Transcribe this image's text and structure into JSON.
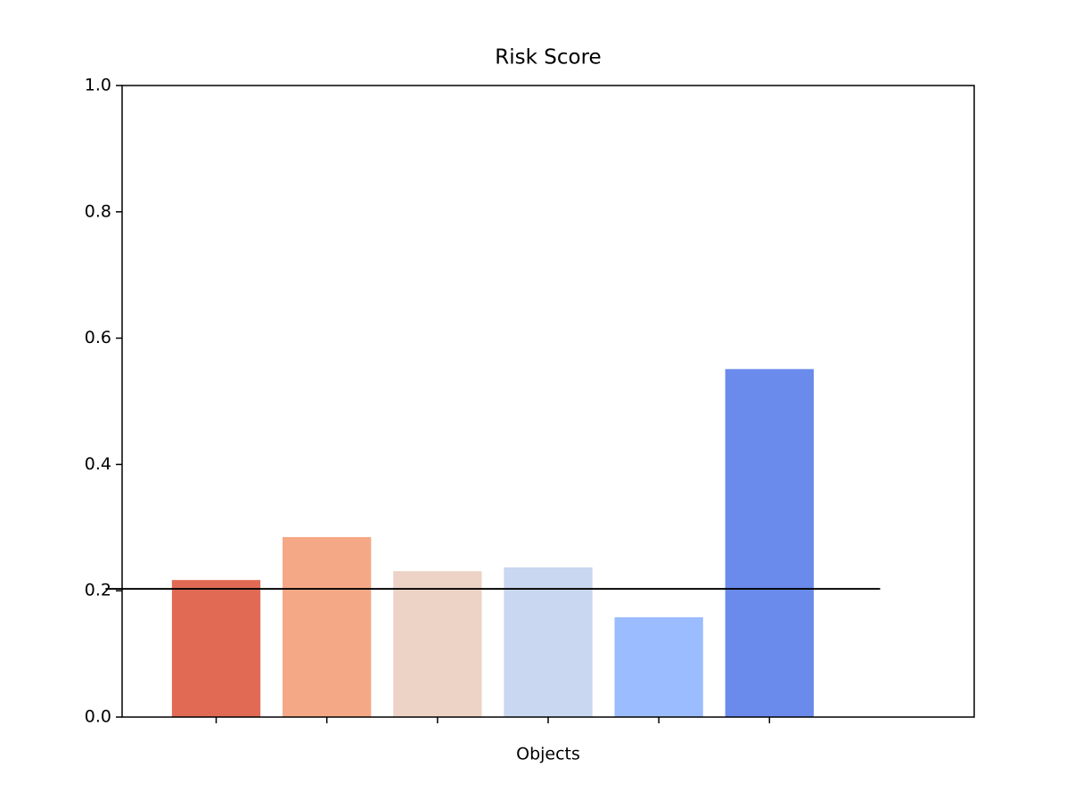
{
  "chart_data": {
    "type": "bar",
    "title": "Risk Score",
    "x_label": "Objects",
    "categories": [
      null,
      null,
      null,
      null,
      null,
      null
    ],
    "values": [
      0.217,
      0.285,
      0.231,
      0.237,
      0.158,
      0.551
    ],
    "colors": [
      "#e16a54",
      "#f5a886",
      "#ecd3c5",
      "#c9d7f0",
      "#9bbcff",
      "#6a8bec"
    ],
    "reference_line": 0.203,
    "ylim": [
      0,
      1
    ],
    "yticks": [
      {
        "value": 0,
        "label": "0.0"
      },
      0.2,
      0.4,
      0.6,
      0.8,
      {
        "value": 1,
        "label": "1.0"
      }
    ],
    "grid": false
  }
}
